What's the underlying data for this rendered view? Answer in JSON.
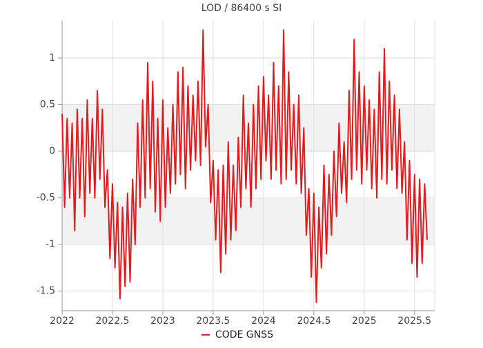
{
  "chart_data": {
    "type": "line",
    "title": "LOD / 86400 s SI",
    "xlim": [
      2022,
      2025.7
    ],
    "xticks": [
      2022,
      2022.5,
      2023,
      2023.5,
      2024,
      2024.5,
      2025,
      2025.5
    ],
    "ylim": [
      -1.71,
      1.4
    ],
    "yticks": [
      -1.5,
      -1,
      -0.5,
      0,
      0.5,
      1
    ],
    "grid": true,
    "legend": "bottom",
    "x": [
      2022,
      2022.025,
      2022.05,
      2022.075,
      2022.1,
      2022.125,
      2022.15,
      2022.175,
      2022.2,
      2022.225,
      2022.25,
      2022.275,
      2022.3,
      2022.325,
      2022.35,
      2022.375,
      2022.4,
      2022.425,
      2022.45,
      2022.475,
      2022.5,
      2022.525,
      2022.55,
      2022.575,
      2022.6,
      2022.625,
      2022.65,
      2022.675,
      2022.7,
      2022.725,
      2022.75,
      2022.775,
      2022.8,
      2022.825,
      2022.85,
      2022.875,
      2022.9,
      2022.925,
      2022.95,
      2022.975,
      2023,
      2023.025,
      2023.05,
      2023.075,
      2023.1,
      2023.125,
      2023.15,
      2023.175,
      2023.2,
      2023.225,
      2023.25,
      2023.275,
      2023.3,
      2023.325,
      2023.35,
      2023.375,
      2023.4,
      2023.425,
      2023.45,
      2023.475,
      2023.5,
      2023.525,
      2023.55,
      2023.575,
      2023.6,
      2023.625,
      2023.65,
      2023.675,
      2023.7,
      2023.725,
      2023.75,
      2023.775,
      2023.8,
      2023.825,
      2023.85,
      2023.875,
      2023.9,
      2023.925,
      2023.95,
      2023.975,
      2024,
      2024.025,
      2024.05,
      2024.075,
      2024.1,
      2024.125,
      2024.15,
      2024.175,
      2024.2,
      2024.225,
      2024.25,
      2024.275,
      2024.3,
      2024.325,
      2024.35,
      2024.375,
      2024.4,
      2024.425,
      2024.45,
      2024.475,
      2024.5,
      2024.525,
      2024.55,
      2024.575,
      2024.6,
      2024.625,
      2024.65,
      2024.675,
      2024.7,
      2024.725,
      2024.75,
      2024.775,
      2024.8,
      2024.825,
      2024.85,
      2024.875,
      2024.9,
      2024.925,
      2024.95,
      2024.975,
      2025,
      2025.025,
      2025.05,
      2025.075,
      2025.1,
      2025.125,
      2025.15,
      2025.175,
      2025.2,
      2025.225,
      2025.25,
      2025.275,
      2025.3,
      2025.325,
      2025.35,
      2025.375,
      2025.4,
      2025.425,
      2025.45,
      2025.475,
      2025.5,
      2025.525,
      2025.55,
      2025.575,
      2025.6,
      2025.625
    ],
    "series": [
      {
        "name": "CODE GNSS",
        "color": "#e41a1c",
        "values": [
          0.4,
          -0.6,
          0.35,
          -0.5,
          0.3,
          -0.85,
          0.45,
          -0.5,
          0.35,
          -0.7,
          0.55,
          -0.45,
          0.35,
          -0.5,
          0.65,
          -0.3,
          0.45,
          -0.6,
          -0.2,
          -1.15,
          -0.35,
          -1.25,
          -0.55,
          -1.58,
          -0.6,
          -1.45,
          -0.45,
          -1.4,
          -0.3,
          -1.0,
          0.3,
          -0.6,
          0.55,
          -0.5,
          0.95,
          -0.4,
          0.75,
          -0.65,
          0.35,
          -0.75,
          0.55,
          -0.6,
          0.25,
          -0.45,
          0.5,
          -0.35,
          0.85,
          -0.25,
          0.9,
          -0.4,
          0.7,
          -0.2,
          0.6,
          -0.1,
          0.75,
          -0.15,
          1.3,
          0.05,
          0.5,
          -0.55,
          -0.1,
          -0.95,
          -0.2,
          -1.3,
          -0.15,
          -1.1,
          0.1,
          -0.95,
          -0.15,
          -0.85,
          0.15,
          -0.6,
          0.6,
          -0.4,
          0.3,
          -0.6,
          0.5,
          -0.4,
          0.7,
          -0.3,
          0.8,
          -0.1,
          0.6,
          -0.3,
          0.95,
          -0.2,
          0.7,
          -0.35,
          1.3,
          -0.3,
          0.85,
          -0.2,
          0.5,
          -0.35,
          0.6,
          -0.45,
          0.25,
          -0.9,
          -0.4,
          -1.35,
          -0.45,
          -1.62,
          -0.6,
          -1.25,
          -0.15,
          -1.1,
          -0.25,
          -0.9,
          0.0,
          -0.7,
          0.3,
          -0.45,
          0.1,
          -0.55,
          0.65,
          -0.3,
          1.2,
          -0.2,
          0.85,
          -0.35,
          0.7,
          -0.2,
          0.55,
          -0.4,
          0.45,
          -0.5,
          0.85,
          -0.3,
          1.1,
          -0.35,
          0.75,
          -0.2,
          0.6,
          -0.4,
          0.45,
          -0.45,
          0.1,
          -0.95,
          -0.1,
          -1.2,
          -0.25,
          -1.35,
          -0.3,
          -1.2,
          -0.35,
          -0.95
        ]
      }
    ]
  }
}
